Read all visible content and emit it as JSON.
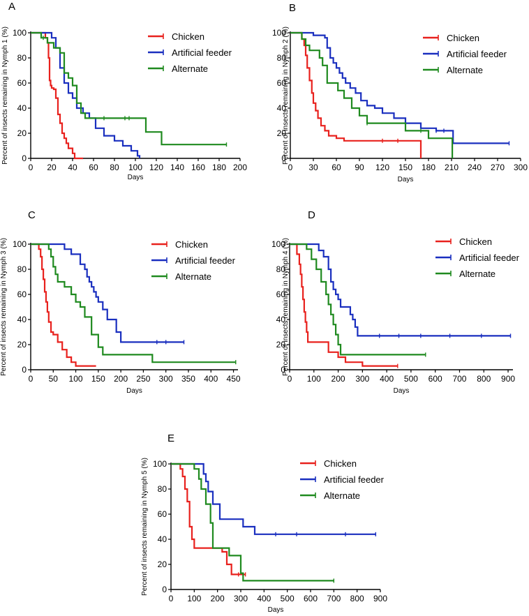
{
  "figure": {
    "colors": {
      "chicken": "#e8211d",
      "artificial": "#1a2fbf",
      "alternate": "#1f8a1f",
      "axis": "#000000"
    }
  },
  "chart_data": [
    {
      "panel": "A",
      "type": "line",
      "step": true,
      "xlabel": "Days",
      "ylabel": "Percent of insects remaining in Nymph 1 (%)",
      "xlim": [
        0,
        200
      ],
      "ylim": [
        0,
        100
      ],
      "xticks": [
        0,
        20,
        40,
        60,
        80,
        100,
        120,
        140,
        160,
        180,
        200
      ],
      "yticks": [
        0,
        20,
        40,
        60,
        80,
        100
      ],
      "legend": [
        "Chicken",
        "Artificial feeder",
        "Alternate"
      ],
      "series": [
        {
          "name": "Chicken",
          "color": "#e8211d",
          "x": [
            0,
            14,
            16,
            17,
            18,
            19,
            20,
            22,
            24,
            26,
            28,
            30,
            32,
            34,
            36,
            40,
            42,
            50
          ],
          "y": [
            100,
            96,
            92,
            80,
            62,
            58,
            56,
            55,
            48,
            35,
            28,
            20,
            16,
            12,
            8,
            4,
            0,
            0
          ],
          "censored": []
        },
        {
          "name": "Artificial feeder",
          "color": "#1a2fbf",
          "x": [
            0,
            16,
            20,
            24,
            28,
            32,
            36,
            40,
            44,
            50,
            56,
            62,
            70,
            80,
            88,
            96,
            102,
            104
          ],
          "y": [
            100,
            100,
            96,
            88,
            72,
            60,
            52,
            48,
            40,
            36,
            32,
            24,
            18,
            14,
            10,
            6,
            2,
            0
          ],
          "censored": []
        },
        {
          "name": "Alternate",
          "color": "#1f8a1f",
          "x": [
            0,
            10,
            16,
            22,
            28,
            32,
            36,
            40,
            44,
            48,
            52,
            100,
            110,
            125,
            187
          ],
          "y": [
            100,
            96,
            92,
            88,
            84,
            68,
            64,
            58,
            44,
            36,
            32,
            32,
            21,
            11,
            11
          ],
          "censored": [
            12,
            70,
            90,
            94,
            187
          ]
        }
      ]
    },
    {
      "panel": "B",
      "type": "line",
      "step": true,
      "xlabel": "Days",
      "ylabel": "Percent of insects remaining in Nymph 2 (%)",
      "xlim": [
        0,
        300
      ],
      "ylim": [
        0,
        100
      ],
      "xticks": [
        0,
        30,
        60,
        90,
        120,
        150,
        180,
        210,
        240,
        270,
        300
      ],
      "yticks": [
        0,
        20,
        40,
        60,
        80,
        100
      ],
      "legend": [
        "Chicken",
        "Artificial feeder",
        "Alternate"
      ],
      "series": [
        {
          "name": "Chicken",
          "color": "#e8211d",
          "x": [
            0,
            15,
            18,
            20,
            22,
            25,
            28,
            30,
            33,
            36,
            40,
            45,
            50,
            60,
            70,
            170
          ],
          "y": [
            100,
            95,
            90,
            82,
            72,
            62,
            52,
            44,
            38,
            32,
            26,
            22,
            18,
            16,
            14,
            0
          ],
          "censored": [
            120,
            140
          ]
        },
        {
          "name": "Artificial feeder",
          "color": "#1a2fbf",
          "x": [
            0,
            30,
            45,
            48,
            52,
            56,
            60,
            64,
            68,
            72,
            78,
            85,
            92,
            100,
            110,
            120,
            135,
            150,
            170,
            190,
            212,
            285
          ],
          "y": [
            100,
            98,
            96,
            88,
            80,
            76,
            72,
            68,
            64,
            60,
            56,
            52,
            46,
            42,
            40,
            36,
            32,
            28,
            24,
            22,
            12,
            12
          ],
          "censored": [
            190,
            200,
            285
          ]
        },
        {
          "name": "Alternate",
          "color": "#1f8a1f",
          "x": [
            0,
            15,
            20,
            25,
            30,
            38,
            42,
            48,
            55,
            62,
            70,
            80,
            90,
            100,
            120,
            150,
            180,
            211
          ],
          "y": [
            100,
            95,
            90,
            86,
            86,
            80,
            74,
            60,
            60,
            54,
            48,
            40,
            34,
            28,
            28,
            22,
            16,
            0
          ],
          "censored": [
            100,
            170
          ]
        }
      ]
    },
    {
      "panel": "C",
      "type": "line",
      "step": true,
      "xlabel": "Days",
      "ylabel": "Percent of insects remaining in Nymph 3 (%)",
      "xlim": [
        0,
        460
      ],
      "ylim": [
        0,
        100
      ],
      "xticks": [
        0,
        50,
        100,
        150,
        200,
        250,
        300,
        350,
        400,
        450
      ],
      "yticks": [
        0,
        20,
        40,
        60,
        80,
        100
      ],
      "legend": [
        "Chicken",
        "Artificial feeder",
        "Alternate"
      ],
      "series": [
        {
          "name": "Chicken",
          "color": "#e8211d",
          "x": [
            0,
            18,
            22,
            25,
            28,
            31,
            34,
            37,
            40,
            45,
            50,
            60,
            70,
            80,
            90,
            100,
            145
          ],
          "y": [
            100,
            96,
            90,
            80,
            72,
            62,
            54,
            46,
            38,
            30,
            28,
            22,
            16,
            10,
            6,
            3,
            3
          ],
          "censored": []
        },
        {
          "name": "Artificial feeder",
          "color": "#1a2fbf",
          "x": [
            0,
            65,
            75,
            90,
            110,
            120,
            125,
            130,
            135,
            140,
            145,
            150,
            160,
            170,
            180,
            190,
            200,
            340
          ],
          "y": [
            100,
            100,
            96,
            92,
            84,
            80,
            74,
            70,
            66,
            62,
            58,
            54,
            48,
            40,
            40,
            30,
            22,
            22
          ],
          "censored": [
            280,
            300,
            340
          ]
        },
        {
          "name": "Alternate",
          "color": "#1f8a1f",
          "x": [
            0,
            40,
            45,
            50,
            55,
            60,
            75,
            90,
            100,
            110,
            120,
            135,
            150,
            160,
            180,
            270,
            455
          ],
          "y": [
            100,
            96,
            90,
            82,
            76,
            70,
            66,
            60,
            54,
            50,
            42,
            28,
            18,
            12,
            12,
            6,
            6
          ],
          "censored": [
            455
          ]
        }
      ]
    },
    {
      "panel": "D",
      "type": "line",
      "step": true,
      "xlabel": "Days",
      "ylabel": "Percent of insects remaining in Nymph 4 (%)",
      "xlim": [
        0,
        920
      ],
      "ylim": [
        0,
        100
      ],
      "xticks": [
        0,
        100,
        200,
        300,
        400,
        500,
        600,
        700,
        800,
        900
      ],
      "yticks": [
        0,
        20,
        40,
        60,
        80,
        100
      ],
      "legend": [
        "Chicken",
        "Artificial feeder",
        "Alternate"
      ],
      "series": [
        {
          "name": "Chicken",
          "color": "#e8211d",
          "x": [
            0,
            30,
            40,
            45,
            50,
            55,
            60,
            65,
            70,
            75,
            130,
            160,
            200,
            230,
            300,
            445
          ],
          "y": [
            100,
            92,
            84,
            76,
            66,
            56,
            46,
            38,
            30,
            22,
            22,
            14,
            10,
            6,
            3,
            3
          ],
          "censored": [
            445
          ]
        },
        {
          "name": "Artificial feeder",
          "color": "#1a2fbf",
          "x": [
            0,
            100,
            120,
            140,
            160,
            170,
            180,
            190,
            200,
            210,
            250,
            260,
            270,
            280,
            910
          ],
          "y": [
            100,
            100,
            95,
            90,
            80,
            70,
            64,
            60,
            56,
            50,
            44,
            40,
            34,
            27,
            27
          ],
          "censored": [
            370,
            450,
            540,
            660,
            790,
            910
          ]
        },
        {
          "name": "Alternate",
          "color": "#1f8a1f",
          "x": [
            0,
            70,
            90,
            110,
            130,
            150,
            160,
            170,
            180,
            190,
            200,
            210,
            560
          ],
          "y": [
            100,
            96,
            88,
            80,
            70,
            60,
            52,
            44,
            36,
            28,
            20,
            12,
            12
          ],
          "censored": [
            560
          ]
        }
      ]
    },
    {
      "panel": "E",
      "type": "line",
      "step": true,
      "xlabel": "Days",
      "ylabel": "Percent of insects remaining in Nymph 5 (%)",
      "xlim": [
        0,
        900
      ],
      "ylim": [
        0,
        100
      ],
      "xticks": [
        0,
        100,
        200,
        300,
        400,
        500,
        600,
        700,
        800,
        900
      ],
      "yticks": [
        0,
        20,
        40,
        60,
        80,
        100
      ],
      "legend": [
        "Chicken",
        "Artificial feeder",
        "Alternate"
      ],
      "series": [
        {
          "name": "Chicken",
          "color": "#e8211d",
          "x": [
            0,
            40,
            50,
            60,
            70,
            80,
            90,
            100,
            200,
            220,
            240,
            260,
            320
          ],
          "y": [
            100,
            96,
            90,
            80,
            70,
            50,
            40,
            33,
            33,
            30,
            20,
            12,
            12
          ],
          "censored": [
            290,
            320
          ]
        },
        {
          "name": "Artificial feeder",
          "color": "#1a2fbf",
          "x": [
            0,
            130,
            140,
            150,
            160,
            180,
            210,
            310,
            360,
            880
          ],
          "y": [
            100,
            100,
            92,
            86,
            78,
            68,
            56,
            50,
            44,
            44
          ],
          "censored": [
            450,
            540,
            750,
            880
          ]
        },
        {
          "name": "Alternate",
          "color": "#1f8a1f",
          "x": [
            0,
            100,
            120,
            130,
            150,
            170,
            180,
            250,
            300,
            310,
            700
          ],
          "y": [
            100,
            96,
            88,
            80,
            68,
            53,
            33,
            27,
            13,
            7,
            7
          ],
          "censored": [
            700
          ]
        }
      ]
    }
  ]
}
